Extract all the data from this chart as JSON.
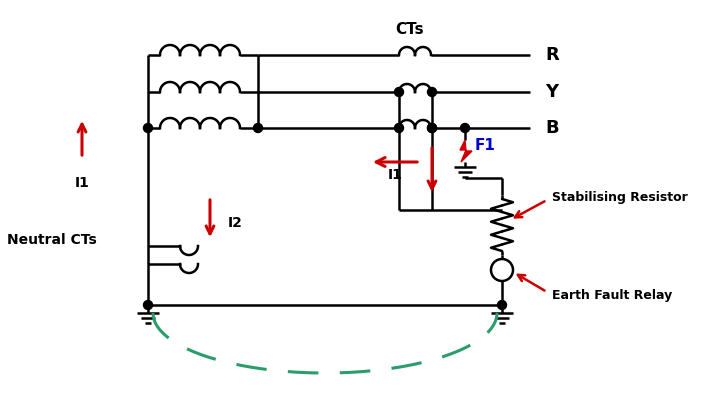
{
  "bg_color": "#ffffff",
  "line_color": "#000000",
  "red_color": "#cc0000",
  "blue_color": "#0000cd",
  "green_dashed_color": "#2a9d6a",
  "node_color": "#000000",
  "label_CTs": "CTs",
  "label_R": "R",
  "label_Y": "Y",
  "label_B": "B",
  "label_F1": "F1",
  "label_I1_mid": "I1",
  "label_I2": "I2",
  "label_I1_left": "I1",
  "label_neutral": "Neutral CTs",
  "label_stab": "Stabilising Resistor",
  "label_efr": "Earth Fault Relay"
}
